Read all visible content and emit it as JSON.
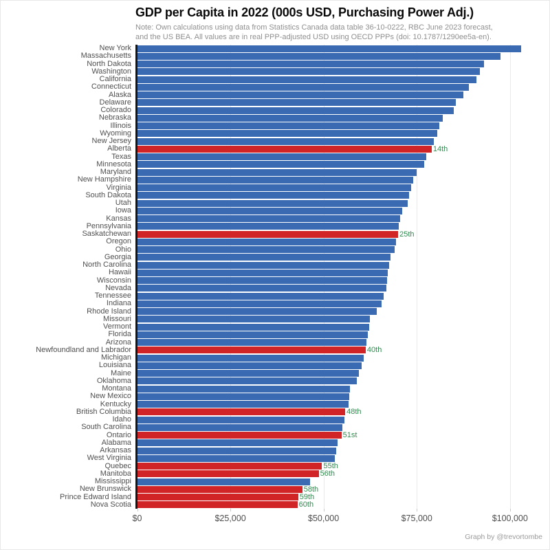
{
  "header": {
    "title": "GDP per Capita in 2022 (000s USD, Purchasing Power Adj.)",
    "note_lines": [
      "Note: Own calculations using data from Statistics Canada data table 36-10-0222, RBC June 2023 forecast,",
      "and the US BEA. All values are in real PPP-adjusted USD using OECD PPPs (doi: 10.1787/1290ee5a-en)."
    ]
  },
  "footer": {
    "credit": "Graph by @trevortombe"
  },
  "colors": {
    "us_bar": "#3a6ab1",
    "canada_bar": "#d02427",
    "rank_label": "#2f8b4e",
    "axis_line": "#161616",
    "gridline": "#e9e9e9",
    "y_label_text": "#4f4f4f",
    "x_label_text": "#4d4d4d",
    "note_text": "#8f8f8f"
  },
  "chart_data": {
    "type": "bar",
    "orientation": "horizontal",
    "title": "GDP per Capita in 2022 (000s USD, Purchasing Power Adj.)",
    "xlabel": "",
    "ylabel": "",
    "xlim": [
      0,
      110000
    ],
    "grid": "vertical-only",
    "legend": "none",
    "x_ticks": [
      {
        "value": 0,
        "label": "$0"
      },
      {
        "value": 25000,
        "label": "$25,000"
      },
      {
        "value": 50000,
        "label": "$50,000"
      },
      {
        "value": 75000,
        "label": "$75,000"
      },
      {
        "value": 100000,
        "label": "$100,000"
      }
    ],
    "bars": [
      {
        "label": "New York",
        "value": 103000,
        "group": "us"
      },
      {
        "label": "Massachusetts",
        "value": 97500,
        "group": "us"
      },
      {
        "label": "North Dakota",
        "value": 93000,
        "group": "us"
      },
      {
        "label": "Washington",
        "value": 92000,
        "group": "us"
      },
      {
        "label": "California",
        "value": 91000,
        "group": "us"
      },
      {
        "label": "Connecticut",
        "value": 89000,
        "group": "us"
      },
      {
        "label": "Alaska",
        "value": 87500,
        "group": "us"
      },
      {
        "label": "Delaware",
        "value": 85500,
        "group": "us"
      },
      {
        "label": "Colorado",
        "value": 85000,
        "group": "us"
      },
      {
        "label": "Nebraska",
        "value": 82000,
        "group": "us"
      },
      {
        "label": "Illinois",
        "value": 81000,
        "group": "us"
      },
      {
        "label": "Wyoming",
        "value": 80500,
        "group": "us"
      },
      {
        "label": "New Jersey",
        "value": 79500,
        "group": "us"
      },
      {
        "label": "Alberta",
        "value": 79000,
        "group": "ca",
        "rank": "14th"
      },
      {
        "label": "Texas",
        "value": 77500,
        "group": "us"
      },
      {
        "label": "Minnesota",
        "value": 77000,
        "group": "us"
      },
      {
        "label": "Maryland",
        "value": 75000,
        "group": "us"
      },
      {
        "label": "New Hampshire",
        "value": 74000,
        "group": "us"
      },
      {
        "label": "Virginia",
        "value": 73500,
        "group": "us"
      },
      {
        "label": "South Dakota",
        "value": 73000,
        "group": "us"
      },
      {
        "label": "Utah",
        "value": 72500,
        "group": "us"
      },
      {
        "label": "Iowa",
        "value": 71000,
        "group": "us"
      },
      {
        "label": "Kansas",
        "value": 70500,
        "group": "us"
      },
      {
        "label": "Pennsylvania",
        "value": 70200,
        "group": "us"
      },
      {
        "label": "Saskatchewan",
        "value": 70000,
        "group": "ca",
        "rank": "25th"
      },
      {
        "label": "Oregon",
        "value": 69500,
        "group": "us"
      },
      {
        "label": "Ohio",
        "value": 69000,
        "group": "us"
      },
      {
        "label": "Georgia",
        "value": 68000,
        "group": "us"
      },
      {
        "label": "North Carolina",
        "value": 67500,
        "group": "us"
      },
      {
        "label": "Hawaii",
        "value": 67200,
        "group": "us"
      },
      {
        "label": "Wisconsin",
        "value": 67000,
        "group": "us"
      },
      {
        "label": "Nevada",
        "value": 66800,
        "group": "us"
      },
      {
        "label": "Tennessee",
        "value": 66200,
        "group": "us"
      },
      {
        "label": "Indiana",
        "value": 65500,
        "group": "us"
      },
      {
        "label": "Rhode Island",
        "value": 64200,
        "group": "us"
      },
      {
        "label": "Missouri",
        "value": 62500,
        "group": "us"
      },
      {
        "label": "Vermont",
        "value": 62200,
        "group": "us"
      },
      {
        "label": "Florida",
        "value": 61800,
        "group": "us"
      },
      {
        "label": "Arizona",
        "value": 61500,
        "group": "us"
      },
      {
        "label": "Newfoundland and Labrador",
        "value": 61300,
        "group": "ca",
        "rank": "40th"
      },
      {
        "label": "Michigan",
        "value": 60800,
        "group": "us"
      },
      {
        "label": "Louisiana",
        "value": 60200,
        "group": "us"
      },
      {
        "label": "Maine",
        "value": 59500,
        "group": "us"
      },
      {
        "label": "Oklahoma",
        "value": 59000,
        "group": "us"
      },
      {
        "label": "Montana",
        "value": 57000,
        "group": "us"
      },
      {
        "label": "New Mexico",
        "value": 56800,
        "group": "us"
      },
      {
        "label": "Kentucky",
        "value": 56700,
        "group": "us"
      },
      {
        "label": "British Columbia",
        "value": 55800,
        "group": "ca",
        "rank": "48th"
      },
      {
        "label": "Idaho",
        "value": 55600,
        "group": "us"
      },
      {
        "label": "South Carolina",
        "value": 55100,
        "group": "us"
      },
      {
        "label": "Ontario",
        "value": 54800,
        "group": "ca",
        "rank": "51st"
      },
      {
        "label": "Alabama",
        "value": 53800,
        "group": "us"
      },
      {
        "label": "Arkansas",
        "value": 53300,
        "group": "us"
      },
      {
        "label": "West Virginia",
        "value": 53000,
        "group": "us"
      },
      {
        "label": "Quebec",
        "value": 49600,
        "group": "ca",
        "rank": "55th"
      },
      {
        "label": "Manitoba",
        "value": 48700,
        "group": "ca",
        "rank": "56th"
      },
      {
        "label": "Mississippi",
        "value": 46300,
        "group": "us"
      },
      {
        "label": "New Brunswick",
        "value": 44300,
        "group": "ca",
        "rank": "58th"
      },
      {
        "label": "Prince Edward Island",
        "value": 43200,
        "group": "ca",
        "rank": "59th"
      },
      {
        "label": "Nova Scotia",
        "value": 43000,
        "group": "ca",
        "rank": "60th"
      }
    ]
  }
}
